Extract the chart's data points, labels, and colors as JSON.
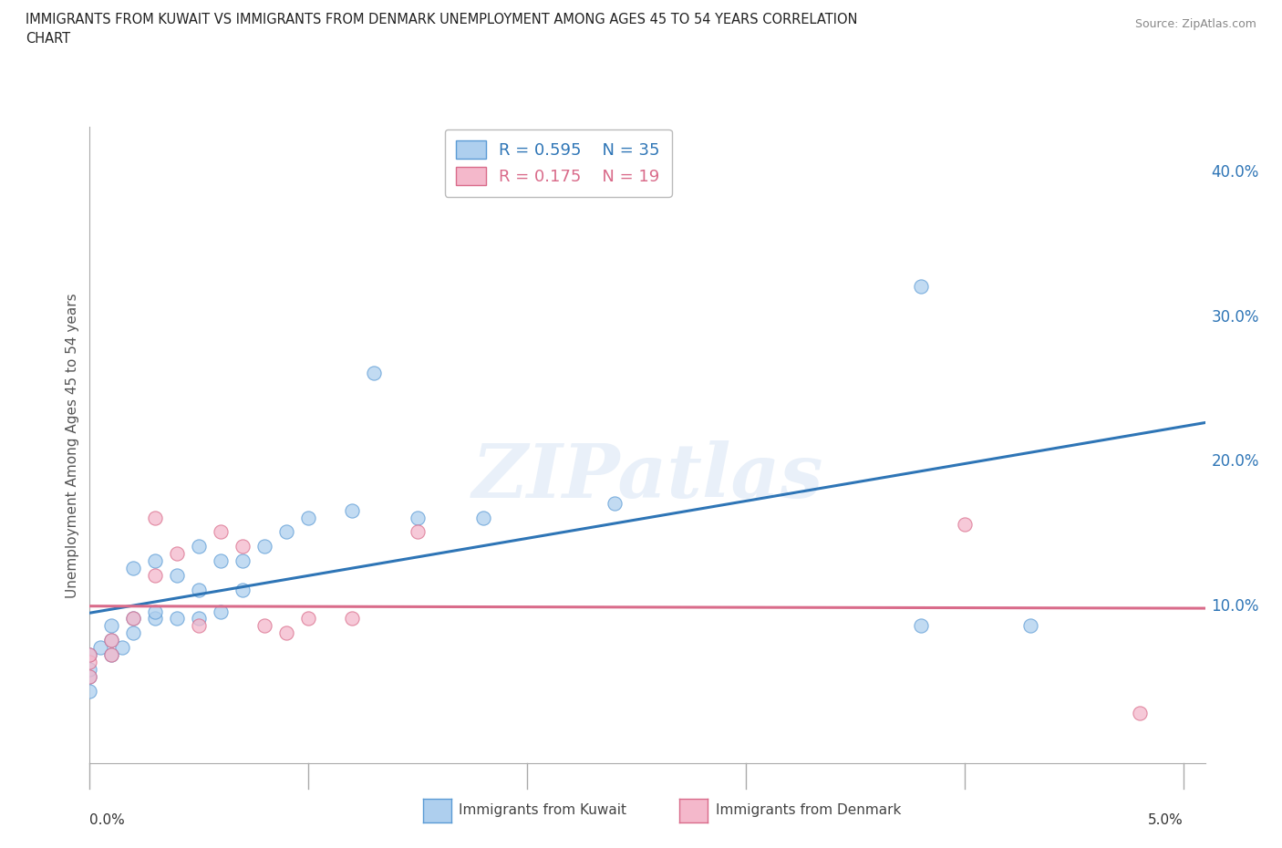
{
  "title": "IMMIGRANTS FROM KUWAIT VS IMMIGRANTS FROM DENMARK UNEMPLOYMENT AMONG AGES 45 TO 54 YEARS CORRELATION\nCHART",
  "source": "Source: ZipAtlas.com",
  "ylabel": "Unemployment Among Ages 45 to 54 years",
  "xlim": [
    0.0,
    0.051
  ],
  "ylim": [
    -0.01,
    0.43
  ],
  "kuwait_color": "#aecfee",
  "kuwait_color_dark": "#5b9bd5",
  "denmark_color": "#f4b8cb",
  "denmark_color_dark": "#d96b8a",
  "trend_kuwait_color": "#2e75b6",
  "trend_denmark_color": "#d96b8a",
  "R_kuwait": 0.595,
  "N_kuwait": 35,
  "R_denmark": 0.175,
  "N_denmark": 19,
  "watermark_text": "ZIPatlas",
  "kuwait_x": [
    0.0,
    0.0,
    0.0,
    0.0,
    0.0005,
    0.001,
    0.001,
    0.001,
    0.0015,
    0.002,
    0.002,
    0.002,
    0.003,
    0.003,
    0.003,
    0.004,
    0.004,
    0.005,
    0.005,
    0.005,
    0.006,
    0.006,
    0.007,
    0.007,
    0.008,
    0.009,
    0.01,
    0.012,
    0.013,
    0.015,
    0.018,
    0.024,
    0.038,
    0.038,
    0.043
  ],
  "kuwait_y": [
    0.04,
    0.05,
    0.055,
    0.065,
    0.07,
    0.065,
    0.075,
    0.085,
    0.07,
    0.08,
    0.09,
    0.125,
    0.09,
    0.095,
    0.13,
    0.09,
    0.12,
    0.09,
    0.11,
    0.14,
    0.095,
    0.13,
    0.11,
    0.13,
    0.14,
    0.15,
    0.16,
    0.165,
    0.26,
    0.16,
    0.16,
    0.17,
    0.32,
    0.085,
    0.085
  ],
  "denmark_x": [
    0.0,
    0.0,
    0.0,
    0.001,
    0.001,
    0.002,
    0.003,
    0.003,
    0.004,
    0.005,
    0.006,
    0.007,
    0.008,
    0.009,
    0.01,
    0.012,
    0.015,
    0.04,
    0.048
  ],
  "denmark_y": [
    0.05,
    0.06,
    0.065,
    0.065,
    0.075,
    0.09,
    0.12,
    0.16,
    0.135,
    0.085,
    0.15,
    0.14,
    0.085,
    0.08,
    0.09,
    0.09,
    0.15,
    0.155,
    0.025
  ],
  "legend_label_kuwait": "Immigrants from Kuwait",
  "legend_label_denmark": "Immigrants from Denmark",
  "background_color": "#ffffff",
  "grid_color": "#cccccc",
  "ytick_vals": [
    0.0,
    0.1,
    0.2,
    0.3,
    0.4
  ],
  "xtick_vals": [
    0.0,
    0.01,
    0.02,
    0.03,
    0.04,
    0.05
  ]
}
